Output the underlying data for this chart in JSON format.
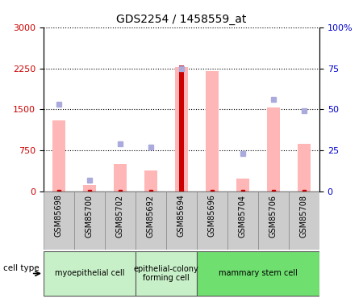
{
  "title": "GDS2254 / 1458559_at",
  "samples": [
    "GSM85698",
    "GSM85700",
    "GSM85702",
    "GSM85692",
    "GSM85694",
    "GSM85696",
    "GSM85704",
    "GSM85706",
    "GSM85708"
  ],
  "pink_bar_values": [
    1300,
    120,
    500,
    380,
    2280,
    2200,
    240,
    1530,
    870
  ],
  "blue_square_values_pct": [
    53,
    7,
    29,
    27,
    75,
    null,
    23,
    56,
    49
  ],
  "red_bar_values": [
    null,
    null,
    null,
    null,
    2300,
    null,
    null,
    null,
    null
  ],
  "red_square_values": [
    3,
    3,
    3,
    3,
    3,
    3,
    3,
    3,
    3
  ],
  "cell_type_groups": [
    {
      "label": "myoepithelial cell",
      "start": 0,
      "end": 3,
      "color": "#c8f0c8"
    },
    {
      "label": "epithelial-colony\nforming cell",
      "start": 3,
      "end": 5,
      "color": "#c8f0c8"
    },
    {
      "label": "mammary stem cell",
      "start": 5,
      "end": 9,
      "color": "#7cdd7c"
    }
  ],
  "left_yticks": [
    0,
    750,
    1500,
    2250,
    3000
  ],
  "right_yticks": [
    0,
    25,
    50,
    75,
    100
  ],
  "left_ylim": [
    0,
    3000
  ],
  "right_ylim": [
    0,
    100
  ],
  "left_tick_color": "#cc0000",
  "right_tick_color": "#0000cc",
  "bar_width": 0.4,
  "red_bar_width": 0.15,
  "pink_color": "#ffb6b6",
  "blue_sq_color": "#aaaadd",
  "red_bar_color": "#cc0000",
  "red_sq_color": "#cc0000",
  "grid_linestyle": "dotted",
  "tick_label_bg": "#cccccc",
  "tick_label_bg_alt": "#cccccc"
}
